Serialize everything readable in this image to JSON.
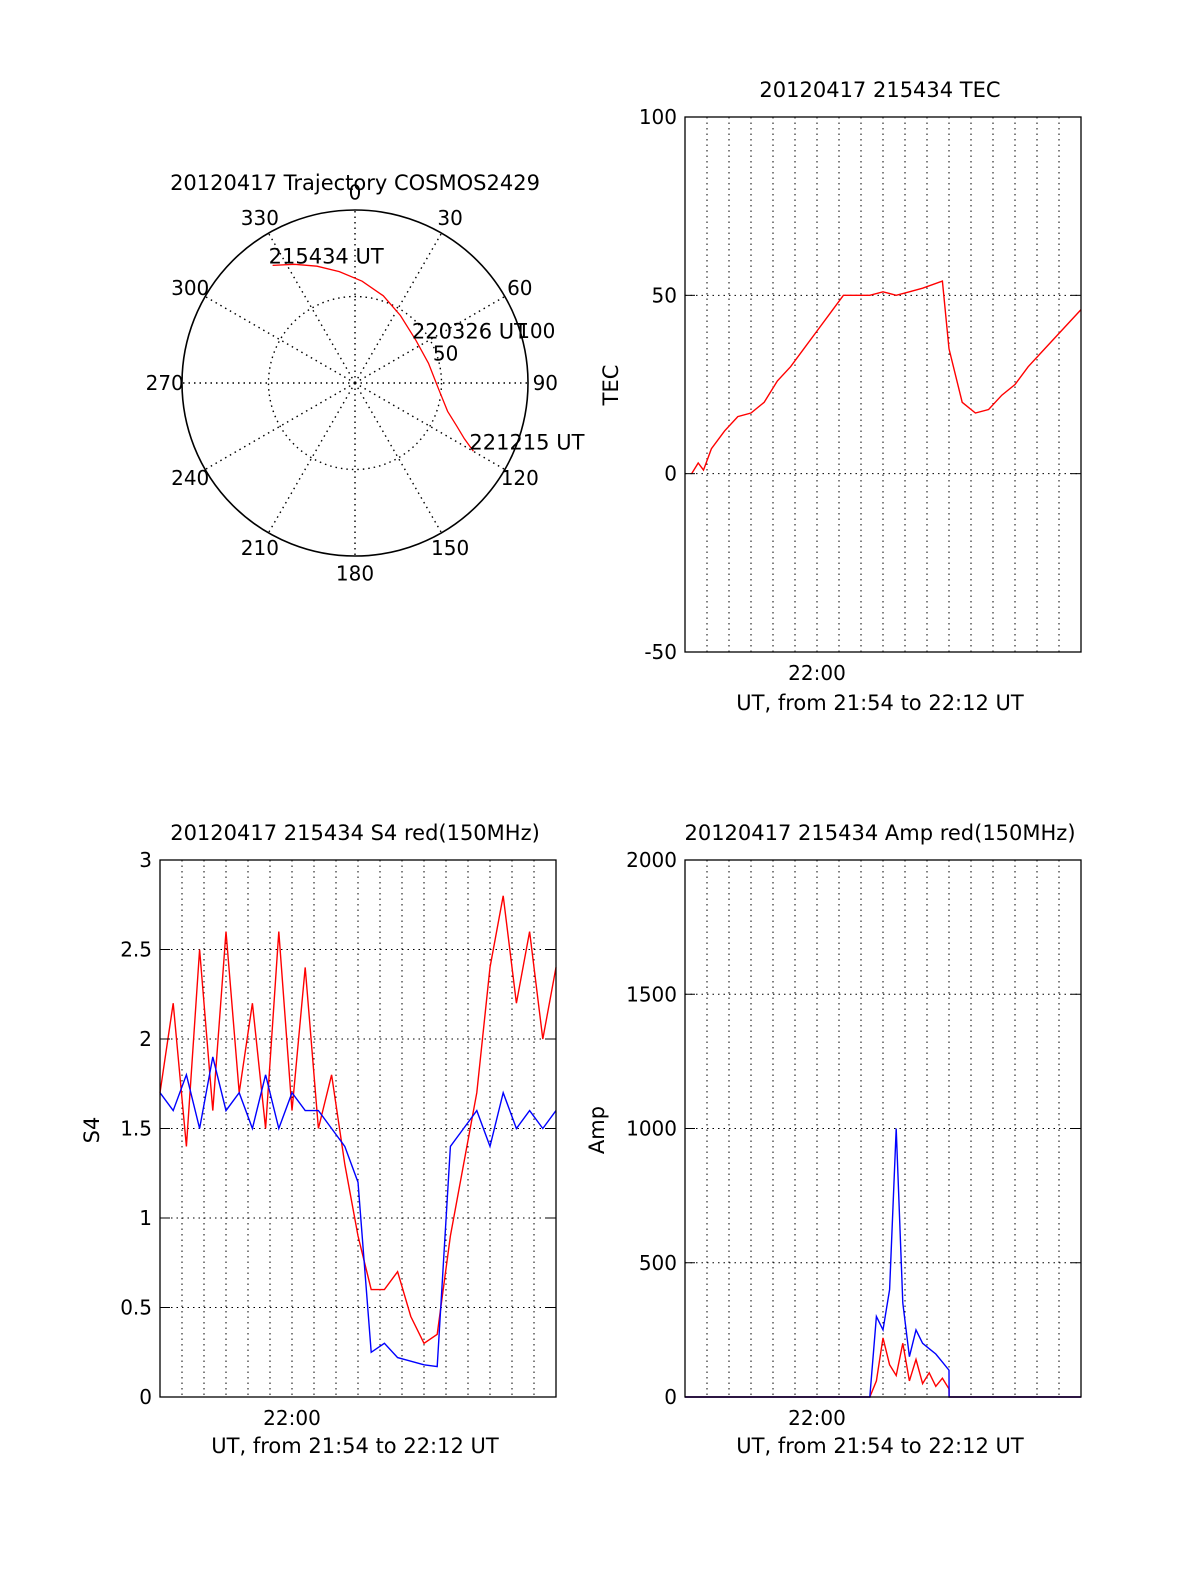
{
  "chart_data": [
    {
      "id": "trajectory",
      "type": "polar",
      "title": "20120417 Trajectory COSMOS2429",
      "azimuth_ticks": [
        {
          "deg": 0,
          "label": "0"
        },
        {
          "deg": 30,
          "label": "30"
        },
        {
          "deg": 60,
          "label": "60"
        },
        {
          "deg": 90,
          "label": "90"
        },
        {
          "deg": 120,
          "label": "120"
        },
        {
          "deg": 150,
          "label": "150"
        },
        {
          "deg": 180,
          "label": "180"
        },
        {
          "deg": 210,
          "label": "210"
        },
        {
          "deg": 240,
          "label": "240"
        },
        {
          "deg": 270,
          "label": "270"
        },
        {
          "deg": 300,
          "label": "300"
        },
        {
          "deg": 330,
          "label": "330"
        }
      ],
      "radial_rings": [
        50,
        100
      ],
      "radial_labels": [
        "50",
        "100"
      ],
      "trajectory": [
        {
          "az": 325,
          "r": 83
        },
        {
          "az": 333,
          "r": 77
        },
        {
          "az": 342,
          "r": 71
        },
        {
          "az": 352,
          "r": 65
        },
        {
          "az": 4,
          "r": 59
        },
        {
          "az": 18,
          "r": 53
        },
        {
          "az": 34,
          "r": 47
        },
        {
          "az": 55,
          "r": 43
        },
        {
          "az": 75,
          "r": 44
        },
        {
          "az": 93,
          "r": 48
        },
        {
          "az": 107,
          "r": 56
        },
        {
          "az": 113,
          "r": 64
        },
        {
          "az": 117,
          "r": 71
        },
        {
          "az": 120,
          "r": 79
        }
      ],
      "time_labels": [
        {
          "text": "215434 UT",
          "az": 325,
          "r": 83
        },
        {
          "text": "220326 UT",
          "az": 55,
          "r": 43
        },
        {
          "text": "221215 UT",
          "az": 120,
          "r": 79
        }
      ],
      "line_color": "#ff0000"
    },
    {
      "id": "tec",
      "type": "line",
      "title": "20120417 215434 TEC",
      "xlabel": "UT, from 21:54 to 22:12 UT",
      "ylabel": "TEC",
      "xlim": [
        21.9,
        22.2
      ],
      "ylim": [
        -50,
        100
      ],
      "yticks": [
        -50,
        0,
        50,
        100
      ],
      "ytick_labels": [
        "-50",
        "0",
        "50",
        "100"
      ],
      "xticks": [
        22.0
      ],
      "xtick_labels": [
        "22:00"
      ],
      "series": [
        {
          "color": "#ff0000",
          "x": [
            21.905,
            21.91,
            21.914,
            21.92,
            21.93,
            21.94,
            21.95,
            21.96,
            21.97,
            21.98,
            21.99,
            22.0,
            22.01,
            22.02,
            22.03,
            22.04,
            22.05,
            22.06,
            22.07,
            22.08,
            22.095,
            22.1,
            22.11,
            22.12,
            22.13,
            22.14,
            22.15,
            22.16,
            22.17,
            22.18,
            22.19,
            22.2
          ],
          "y": [
            0,
            3,
            1,
            7,
            12,
            16,
            17,
            20,
            26,
            30,
            35,
            40,
            45,
            50,
            50,
            50,
            51,
            50,
            51,
            52,
            54,
            35,
            20,
            17,
            18,
            22,
            25,
            30,
            34,
            38,
            42,
            46
          ]
        }
      ],
      "grid": true
    },
    {
      "id": "s4",
      "type": "line",
      "title": "20120417 215434 S4 red(150MHz)",
      "xlabel": "UT, from 21:54 to 22:12 UT",
      "ylabel": "S4",
      "xlim": [
        21.9,
        22.2
      ],
      "ylim": [
        0,
        3
      ],
      "yticks": [
        0,
        0.5,
        1,
        1.5,
        2,
        2.5,
        3
      ],
      "ytick_labels": [
        "0",
        "0.5",
        "1",
        "1.5",
        "2",
        "2.5",
        "3"
      ],
      "xticks": [
        22.0
      ],
      "xtick_labels": [
        "22:00"
      ],
      "series": [
        {
          "color": "#ff0000",
          "x": [
            21.9,
            21.91,
            21.92,
            21.93,
            21.94,
            21.95,
            21.96,
            21.97,
            21.98,
            21.99,
            22.0,
            22.01,
            22.02,
            22.03,
            22.04,
            22.05,
            22.06,
            22.07,
            22.08,
            22.09,
            22.1,
            22.11,
            22.12,
            22.13,
            22.14,
            22.15,
            22.16,
            22.17,
            22.18,
            22.19,
            22.2
          ],
          "y": [
            1.7,
            2.2,
            1.4,
            2.5,
            1.6,
            2.6,
            1.7,
            2.2,
            1.5,
            2.6,
            1.6,
            2.4,
            1.5,
            1.8,
            1.3,
            0.9,
            0.6,
            0.6,
            0.7,
            0.45,
            0.3,
            0.35,
            0.9,
            1.3,
            1.7,
            2.4,
            2.8,
            2.2,
            2.6,
            2.0,
            2.4
          ]
        },
        {
          "color": "#0000ff",
          "x": [
            21.9,
            21.91,
            21.92,
            21.93,
            21.94,
            21.95,
            21.96,
            21.97,
            21.98,
            21.99,
            22.0,
            22.01,
            22.02,
            22.03,
            22.04,
            22.05,
            22.06,
            22.07,
            22.08,
            22.09,
            22.1,
            22.11,
            22.12,
            22.13,
            22.14,
            22.15,
            22.16,
            22.17,
            22.18,
            22.19,
            22.2
          ],
          "y": [
            1.7,
            1.6,
            1.8,
            1.5,
            1.9,
            1.6,
            1.7,
            1.5,
            1.8,
            1.5,
            1.7,
            1.6,
            1.6,
            1.5,
            1.4,
            1.2,
            0.25,
            0.3,
            0.22,
            0.2,
            0.18,
            0.17,
            1.4,
            1.5,
            1.6,
            1.4,
            1.7,
            1.5,
            1.6,
            1.5,
            1.6
          ]
        }
      ],
      "grid": true
    },
    {
      "id": "amp",
      "type": "line",
      "title": "20120417 215434 Amp red(150MHz)",
      "xlabel": "UT, from 21:54 to 22:12 UT",
      "ylabel": "Amp",
      "xlim": [
        21.9,
        22.2
      ],
      "ylim": [
        0,
        2000
      ],
      "yticks": [
        0,
        500,
        1000,
        1500,
        2000
      ],
      "ytick_labels": [
        "0",
        "500",
        "1000",
        "1500",
        "2000"
      ],
      "xticks": [
        22.0
      ],
      "xtick_labels": [
        "22:00"
      ],
      "series": [
        {
          "color": "#ff0000",
          "x": [
            21.9,
            22.04,
            22.045,
            22.05,
            22.055,
            22.06,
            22.065,
            22.07,
            22.075,
            22.08,
            22.085,
            22.09,
            22.095,
            22.1,
            22.1001,
            22.2
          ],
          "y": [
            0,
            0,
            60,
            220,
            120,
            80,
            200,
            60,
            140,
            50,
            90,
            40,
            70,
            30,
            0,
            0
          ]
        },
        {
          "color": "#0000ff",
          "x": [
            21.9,
            22.04,
            22.045,
            22.05,
            22.055,
            22.06,
            22.065,
            22.07,
            22.075,
            22.08,
            22.085,
            22.09,
            22.095,
            22.1,
            22.1001,
            22.2
          ],
          "y": [
            0,
            0,
            300,
            250,
            400,
            1000,
            350,
            150,
            250,
            200,
            180,
            160,
            130,
            100,
            0,
            0
          ]
        }
      ],
      "grid": true
    }
  ]
}
